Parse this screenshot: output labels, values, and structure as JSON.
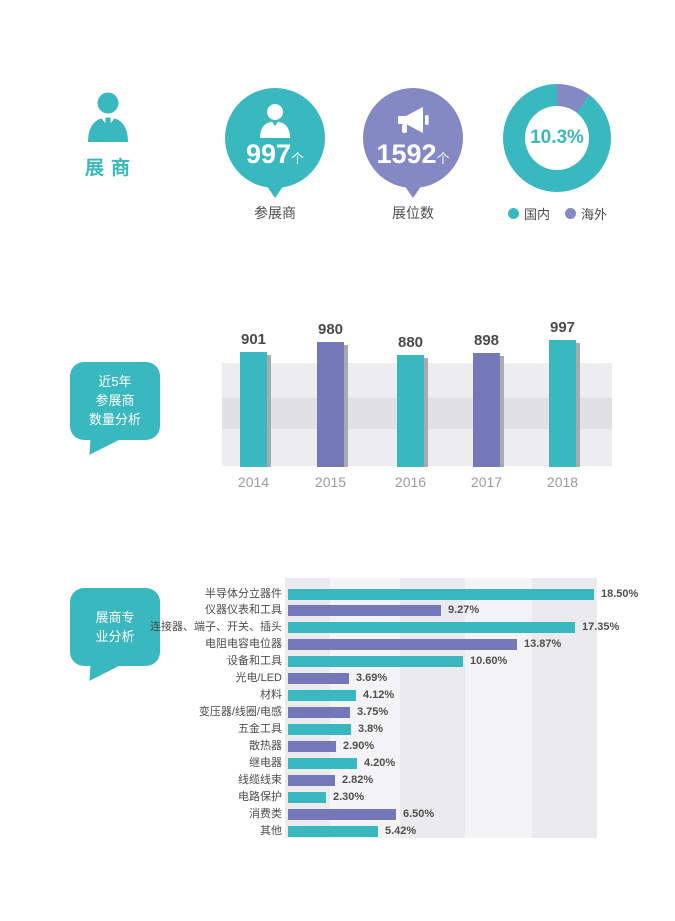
{
  "header": {
    "title": "展商"
  },
  "stats": {
    "exhibitors": {
      "value": "997",
      "unit": "个",
      "caption": "参展商"
    },
    "booths": {
      "value": "1592",
      "unit": "个",
      "caption": "展位数"
    },
    "donut": {
      "center_label": "10.3%"
    }
  },
  "legend": {
    "domestic": "国内",
    "overseas": "海外"
  },
  "section_middle": {
    "bubble_lines": [
      "近5年",
      "参展商",
      "数量分析"
    ]
  },
  "section_bottom": {
    "bubble_lines": [
      "展商专",
      "业分析"
    ]
  },
  "colors": {
    "teal": "#3ab8bf",
    "purple": "#8489c3",
    "purple_bar": "#7478b9",
    "plot_bg": "#ededef",
    "plot_band": "#e1e1e4"
  },
  "chart_data": [
    {
      "type": "pie",
      "subtype": "donut",
      "center_label": "10.3%",
      "legend_position": "bottom",
      "slices": [
        {
          "label": "海外",
          "value": 10.3,
          "color": "#8489c3"
        },
        {
          "label": "国内",
          "value": 89.7,
          "color": "#3ab8bf"
        }
      ]
    },
    {
      "type": "bar",
      "title": "近5年参展商数量分析",
      "categories": [
        "2014",
        "2015",
        "2016",
        "2017",
        "2018"
      ],
      "values": [
        901,
        980,
        880,
        898,
        997
      ],
      "value_labels": [
        "901",
        "980",
        "880",
        "898",
        "997"
      ],
      "bar_colors": [
        "#3ab8bf",
        "#7478b9",
        "#3ab8bf",
        "#7478b9",
        "#3ab8bf"
      ],
      "xlabel": "",
      "ylabel": "",
      "ylim": [
        0,
        997
      ],
      "grid": false
    },
    {
      "type": "bar",
      "orientation": "horizontal",
      "title": "展商专业分析",
      "categories": [
        "半导体分立器件",
        "仪器仪表和工具",
        "连接器、端子、开关、插头",
        "电阻电容电位器",
        "设备和工具",
        "光电/LED",
        "材料",
        "变压器/线圈/电感",
        "五金工具",
        "散热器",
        "继电器",
        "线缆线束",
        "电路保护",
        "消费类",
        "其他"
      ],
      "values": [
        18.5,
        9.27,
        17.35,
        13.87,
        10.6,
        3.69,
        4.12,
        3.75,
        3.8,
        2.9,
        4.2,
        2.82,
        2.3,
        6.5,
        5.42
      ],
      "value_labels": [
        "18.50%",
        "9.27%",
        "17.35%",
        "13.87%",
        "10.60%",
        "3.69%",
        "4.12%",
        "3.75%",
        "3.8%",
        "2.90%",
        "4.20%",
        "2.82%",
        "2.30%",
        "6.50%",
        "5.42%"
      ],
      "bar_colors": [
        "#3ab8bf",
        "#7478b9",
        "#3ab8bf",
        "#7478b9",
        "#3ab8bf",
        "#7478b9",
        "#3ab8bf",
        "#7478b9",
        "#3ab8bf",
        "#7478b9",
        "#3ab8bf",
        "#7478b9",
        "#3ab8bf",
        "#7478b9",
        "#3ab8bf"
      ],
      "xlabel": "",
      "ylabel": "",
      "xlim": [
        0,
        18.5
      ],
      "grid": false
    }
  ]
}
